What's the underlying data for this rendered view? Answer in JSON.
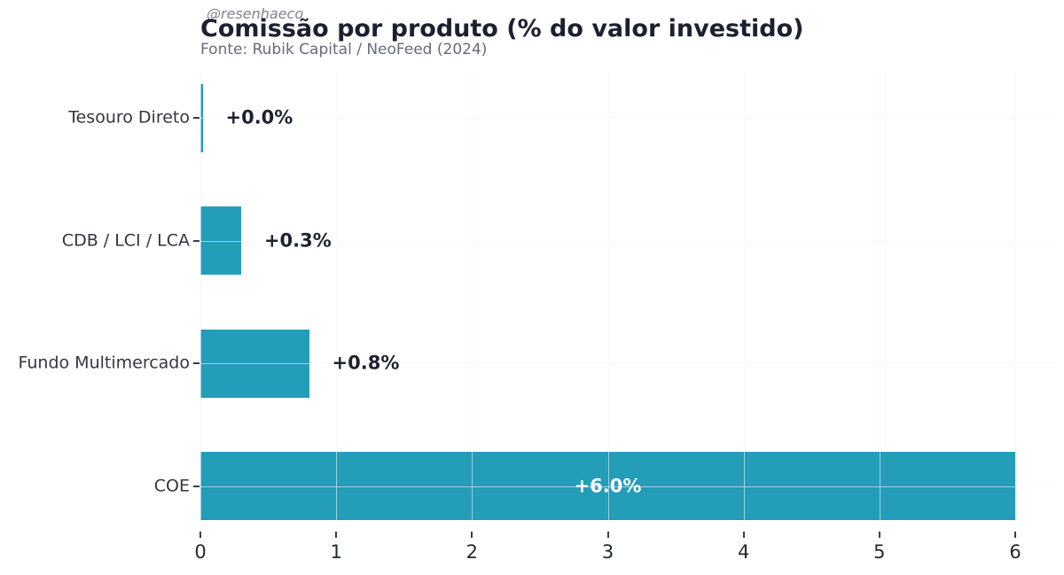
{
  "header": {
    "watermark": "@resenhaeco",
    "title": "Comissão por produto (% do valor investido)",
    "subtitle": "Fonte: Rubik Capital / NeoFeed (2024)"
  },
  "chart_data": {
    "type": "bar",
    "orientation": "horizontal",
    "title": "Comissão por produto (% do valor investido)",
    "subtitle": "Fonte: Rubik Capital / NeoFeed (2024)",
    "categories": [
      "Tesouro Direto",
      "CDB / LCI / LCA",
      "Fundo Multimercado",
      "COE"
    ],
    "values": [
      0.0,
      0.3,
      0.8,
      6.0
    ],
    "value_labels": [
      "+0.0%",
      "+0.3%",
      "+0.8%",
      "+6.0%"
    ],
    "value_label_inside": [
      false,
      false,
      false,
      true
    ],
    "x_ticks": [
      "0",
      "1",
      "2",
      "3",
      "4",
      "5",
      "6"
    ],
    "x_tick_values": [
      0,
      1,
      2,
      3,
      4,
      5,
      6
    ],
    "xlim": [
      0,
      6.29
    ],
    "grid": true,
    "legend": "none",
    "colors": {
      "bar": "#239db8",
      "title": "#1c2130",
      "subtitle": "#666b76",
      "watermark": "#83838d",
      "category_label": "#32363f",
      "tick_label": "#24282f",
      "value_label": "#1d2230",
      "value_label_inside": "#ffffff",
      "gridline": "#f0f0f5",
      "gridline_over_bar": "rgba(255,255,255,0.55)",
      "tick_mark": "#3a3f47"
    }
  }
}
